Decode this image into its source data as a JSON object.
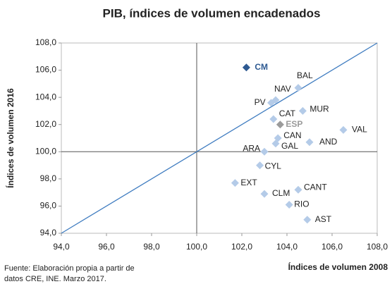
{
  "chart_data": {
    "type": "scatter",
    "title": "PIB, índices de volumen encadenados",
    "x_label": "Índices de volumen 2008",
    "y_label": "Índices de volumen 2016",
    "source": [
      "Fuente: Elaboración propia a partir de",
      "datos CRE, INE. Marzo 2017."
    ],
    "labels": [
      "CM",
      "BAL",
      "NAV",
      "PV",
      "MUR",
      "CAT",
      "ESP",
      "VAL",
      "CAN",
      "AND",
      "GAL",
      "ARA",
      "CYL",
      "EXT",
      "CANT",
      "CLM",
      "RIO",
      "AST"
    ],
    "x": [
      102.2,
      104.5,
      103.5,
      103.3,
      104.7,
      103.4,
      103.7,
      106.5,
      103.6,
      105.0,
      103.5,
      103.0,
      102.8,
      101.7,
      104.5,
      103.0,
      104.1,
      104.9
    ],
    "y": [
      106.2,
      104.7,
      103.8,
      103.6,
      103.0,
      102.4,
      102.0,
      101.6,
      101.0,
      100.7,
      100.6,
      100.0,
      99.0,
      97.7,
      97.2,
      96.9,
      96.1,
      95.0
    ],
    "point_colors": [
      "#2e5a92",
      "#b4cbe8",
      "#b4cbe8",
      "#b4cbe8",
      "#b4cbe8",
      "#b4cbe8",
      "#9b9b9b",
      "#b4cbe8",
      "#b4cbe8",
      "#b4cbe8",
      "#b4cbe8",
      "#b4cbe8",
      "#b4cbe8",
      "#b4cbe8",
      "#b4cbe8",
      "#b4cbe8",
      "#b4cbe8",
      "#b4cbe8"
    ],
    "xlim": [
      94,
      108
    ],
    "ylim": [
      94,
      108
    ],
    "xticks": [
      {
        "value": 94,
        "label": "94,0"
      },
      {
        "value": 96,
        "label": "96,0"
      },
      {
        "value": 98,
        "label": "98,0"
      },
      {
        "value": 100,
        "label": "100,0"
      },
      {
        "value": 102,
        "label": "102,0"
      },
      {
        "value": 104,
        "label": "104,0"
      },
      {
        "value": 106,
        "label": "106,0"
      },
      {
        "value": 108,
        "label": "108,0"
      }
    ],
    "yticks": [
      {
        "value": 94,
        "label": "94,0"
      },
      {
        "value": 96,
        "label": "96,0"
      },
      {
        "value": 98,
        "label": "98,0"
      },
      {
        "value": 100,
        "label": "100,0"
      },
      {
        "value": 102,
        "label": "102,0"
      },
      {
        "value": 104,
        "label": "104,0"
      },
      {
        "value": 106,
        "label": "106,0"
      },
      {
        "value": 108,
        "label": "108,0"
      }
    ],
    "reference_x": 100,
    "reference_y": 100,
    "diagonal_color": "#3f7cc0"
  }
}
